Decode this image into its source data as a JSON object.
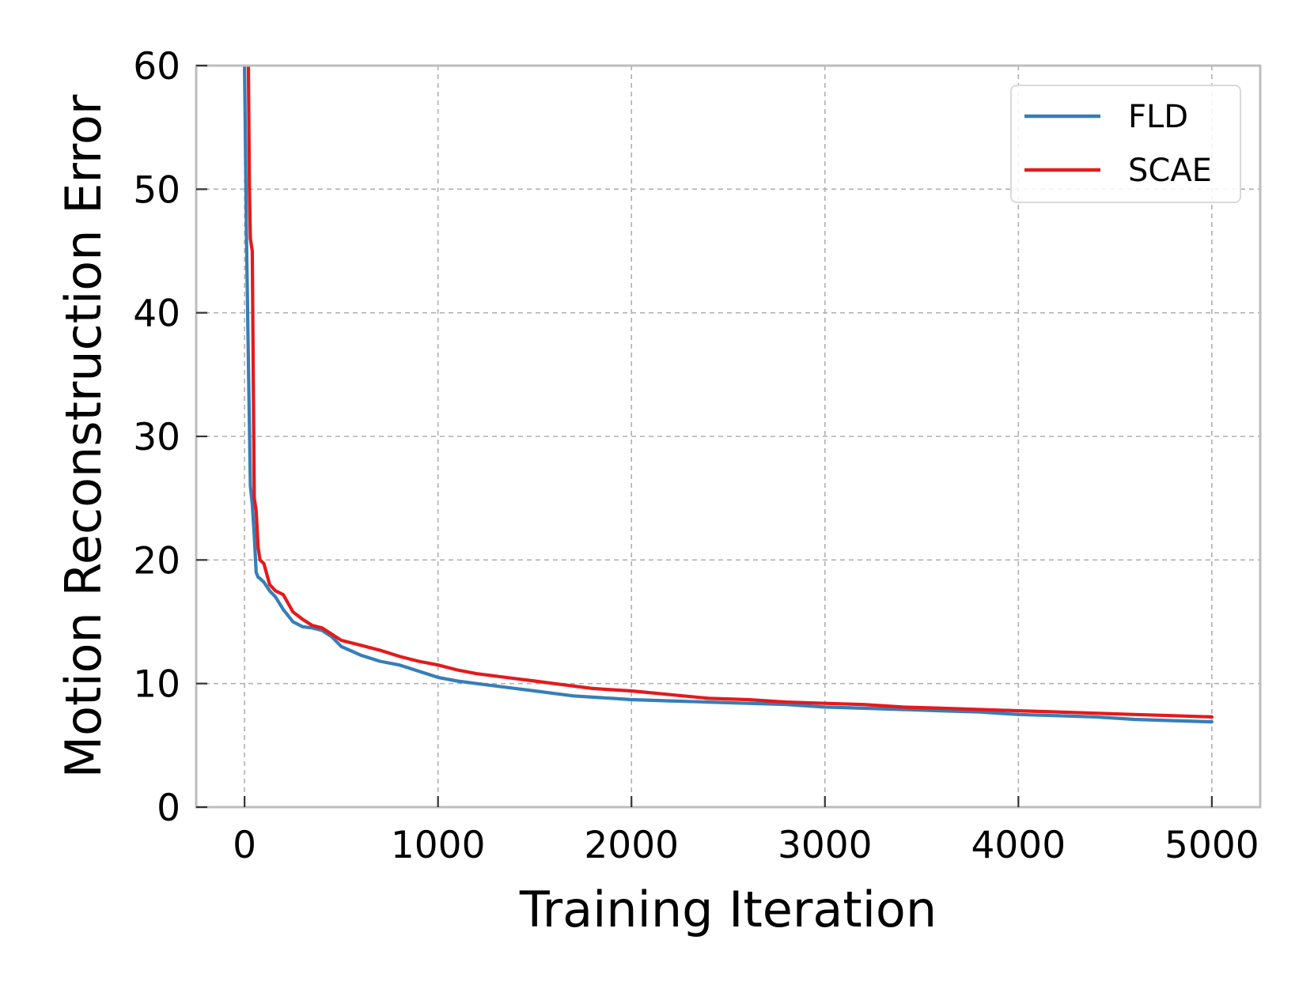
{
  "chart_data": {
    "type": "line",
    "title": "",
    "xlabel": "Training Iteration",
    "ylabel": "Motion Reconstruction Error",
    "xlim": [
      -250,
      5250
    ],
    "ylim": [
      0,
      60
    ],
    "xticks": [
      0,
      1000,
      2000,
      3000,
      4000,
      5000
    ],
    "yticks": [
      0,
      10,
      20,
      30,
      40,
      50,
      60
    ],
    "grid": true,
    "legend_position": "top-right",
    "series": [
      {
        "name": "FLD",
        "color": "#377eb8",
        "x": [
          0,
          10,
          20,
          30,
          40,
          50,
          60,
          70,
          80,
          100,
          130,
          160,
          200,
          250,
          300,
          350,
          400,
          450,
          500,
          600,
          700,
          800,
          900,
          1000,
          1100,
          1200,
          1300,
          1400,
          1500,
          1600,
          1700,
          1800,
          1900,
          2000,
          2200,
          2400,
          2600,
          2800,
          3000,
          3200,
          3400,
          3600,
          3800,
          4000,
          4200,
          4400,
          4600,
          4800,
          5000
        ],
        "y": [
          60,
          46,
          36,
          26,
          24.5,
          22,
          19,
          18.6,
          18.5,
          18.2,
          17.5,
          17,
          16,
          15,
          14.6,
          14.5,
          14.3,
          13.8,
          13,
          12.3,
          11.8,
          11.5,
          11.0,
          10.5,
          10.2,
          10.0,
          9.8,
          9.6,
          9.4,
          9.2,
          9.0,
          8.9,
          8.8,
          8.7,
          8.6,
          8.5,
          8.4,
          8.3,
          8.1,
          8.0,
          7.9,
          7.8,
          7.7,
          7.5,
          7.4,
          7.3,
          7.1,
          7.0,
          6.9
        ]
      },
      {
        "name": "SCAE",
        "color": "#e41a1c",
        "x": [
          20,
          25,
          30,
          40,
          50,
          60,
          70,
          80,
          100,
          130,
          160,
          200,
          250,
          300,
          350,
          400,
          450,
          500,
          600,
          700,
          800,
          900,
          1000,
          1100,
          1200,
          1300,
          1400,
          1500,
          1600,
          1700,
          1800,
          1900,
          2000,
          2200,
          2400,
          2600,
          2800,
          3000,
          3200,
          3400,
          3600,
          3800,
          4000,
          4200,
          4400,
          4600,
          4800,
          5000
        ],
        "y": [
          60,
          50,
          46,
          45,
          25,
          24,
          21,
          20,
          19.7,
          18,
          17.5,
          17.2,
          15.8,
          15.2,
          14.7,
          14.5,
          14.0,
          13.5,
          13.1,
          12.7,
          12.2,
          11.8,
          11.5,
          11.1,
          10.8,
          10.6,
          10.4,
          10.2,
          10.0,
          9.8,
          9.6,
          9.5,
          9.4,
          9.1,
          8.8,
          8.7,
          8.5,
          8.4,
          8.3,
          8.1,
          8.0,
          7.9,
          7.8,
          7.7,
          7.6,
          7.5,
          7.4,
          7.3
        ]
      }
    ]
  }
}
